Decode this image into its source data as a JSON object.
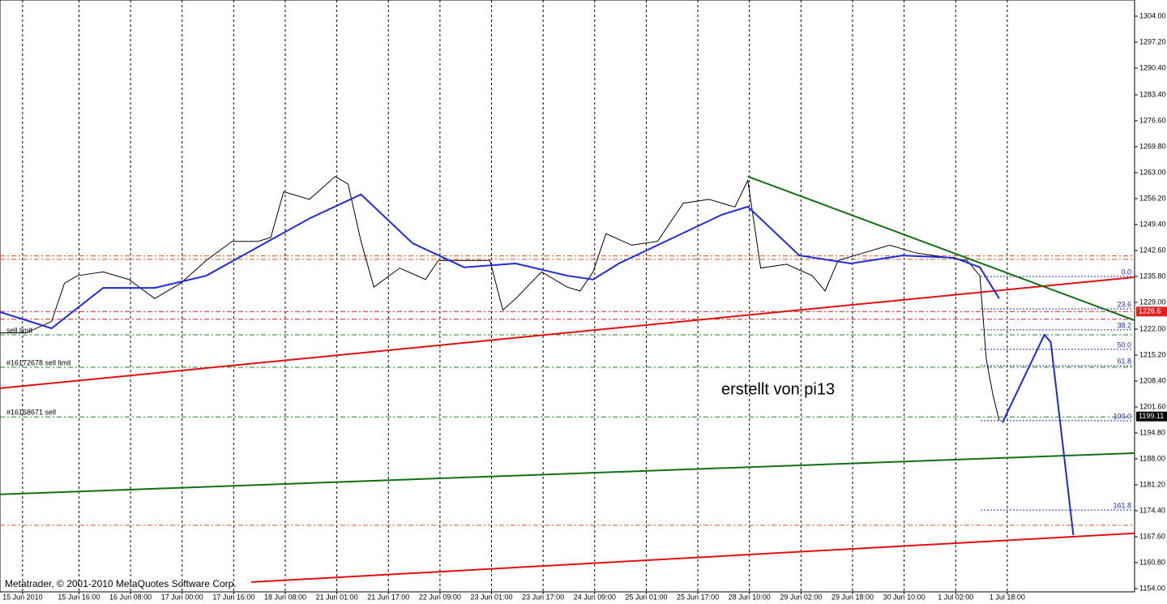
{
  "chart_data": {
    "type": "line",
    "footer": "Metatrader, © 2001-2010 MetaQuotes Software Corp.",
    "annotation": "erstellt von  pi13",
    "xlim": [
      0,
      352
    ],
    "xticks": [
      {
        "value": 7,
        "label": "15 Jun 2010"
      },
      {
        "value": 24.5,
        "label": "15 Jun 16:00"
      },
      {
        "value": 40.5,
        "label": "16 Jun 08:00"
      },
      {
        "value": 56.5,
        "label": "17 Jun 00:00"
      },
      {
        "value": 72.5,
        "label": "17 Jun 16:00"
      },
      {
        "value": 88.5,
        "label": "18 Jun 08:00"
      },
      {
        "value": 104.5,
        "label": "21 Jun 01:00"
      },
      {
        "value": 120.5,
        "label": "21 Jun 17:00"
      },
      {
        "value": 136.5,
        "label": "22 Jun 09:00"
      },
      {
        "value": 152.5,
        "label": "23 Jun 01:00"
      },
      {
        "value": 168.5,
        "label": "23 Jun 17:00"
      },
      {
        "value": 184.5,
        "label": "24 Jun 09:00"
      },
      {
        "value": 200.5,
        "label": "25 Jun 01:00"
      },
      {
        "value": 216.5,
        "label": "25 Jun 17:00"
      },
      {
        "value": 232.5,
        "label": "28 Jun 10:00"
      },
      {
        "value": 248.5,
        "label": "29 Jun 02:00"
      },
      {
        "value": 264.5,
        "label": "29 Jun 18:00"
      },
      {
        "value": 280.5,
        "label": "30 Jun 10:00"
      },
      {
        "value": 296.5,
        "label": "1 Jul 02:00"
      },
      {
        "value": 312.5,
        "label": "1 Jul 18:00"
      }
    ],
    "ylim": [
      1153.15,
      1308.25
    ],
    "yticks": [
      {
        "value": 1304,
        "label": "1304.00"
      },
      {
        "value": 1297.2,
        "label": "1297.20"
      },
      {
        "value": 1290.4,
        "label": "1290.40"
      },
      {
        "value": 1283.4,
        "label": "1283.40"
      },
      {
        "value": 1276.6,
        "label": "1276.60"
      },
      {
        "value": 1269.8,
        "label": "1269.80"
      },
      {
        "value": 1263,
        "label": "1263.00"
      },
      {
        "value": 1256.2,
        "label": "1256.20"
      },
      {
        "value": 1249.4,
        "label": "1249.40"
      },
      {
        "value": 1242.6,
        "label": "1242.60"
      },
      {
        "value": 1235.8,
        "label": "1235.80"
      },
      {
        "value": 1229,
        "label": "1229.00"
      },
      {
        "value": 1222,
        "label": "1222.00"
      },
      {
        "value": 1215.2,
        "label": "1215.20"
      },
      {
        "value": 1208.4,
        "label": "1208.40"
      },
      {
        "value": 1201.6,
        "label": "1201.60"
      },
      {
        "value": 1194.8,
        "label": "1194.80"
      },
      {
        "value": 1188,
        "label": "1188.00"
      },
      {
        "value": 1181.2,
        "label": "1181.20"
      },
      {
        "value": 1174.4,
        "label": "1174.40"
      },
      {
        "value": 1167.6,
        "label": "1167.60"
      },
      {
        "value": 1160.8,
        "label": "1160.80"
      },
      {
        "value": 1154,
        "label": "1154.00"
      }
    ],
    "grid": "x",
    "series": [
      {
        "color": "#000000",
        "x": [
          0,
          8,
          16,
          20,
          24,
          32,
          40,
          48,
          56,
          64,
          72,
          80,
          84,
          88,
          96,
          104,
          108,
          112,
          116,
          124,
          132,
          136,
          144,
          152,
          156,
          160,
          168,
          176,
          180,
          184,
          188,
          196,
          204,
          212,
          220,
          228,
          232,
          236,
          244,
          252,
          256,
          260,
          268,
          276,
          284,
          292,
          300,
          304,
          306,
          308,
          310
        ],
        "values": [
          1221,
          1221,
          1224,
          1234,
          1236,
          1237,
          1235,
          1230,
          1234,
          1240,
          1245,
          1245,
          1246,
          1258,
          1256,
          1262,
          1260,
          1245,
          1233,
          1238,
          1235,
          1240,
          1240,
          1240,
          1227,
          1230,
          1237,
          1233,
          1232,
          1237,
          1247,
          1244,
          1245,
          1255,
          1256,
          1254,
          1261,
          1238,
          1239,
          1236,
          1232,
          1240,
          1242,
          1244,
          1242,
          1241,
          1240,
          1236,
          1214,
          1205,
          1198
        ]
      },
      {
        "color": "#1f2bd6",
        "x": [
          0,
          16,
          32,
          48,
          64,
          80,
          96,
          112,
          128,
          144,
          160,
          176,
          184,
          192,
          208,
          224,
          232,
          248,
          264,
          280,
          296,
          304,
          310
        ],
        "values": [
          1226.5,
          1222.2,
          1232.8,
          1232.8,
          1236,
          1243.5,
          1251,
          1257.3,
          1244.5,
          1238.2,
          1239.2,
          1236,
          1235,
          1239.2,
          1245.6,
          1252,
          1254.1,
          1241.3,
          1239.2,
          1241.3,
          1240.7,
          1238.2,
          1230
        ]
      }
    ],
    "hlines": [
      {
        "value": 1241.2,
        "color": "#e0501a"
      },
      {
        "value": 1240.3,
        "color": "#e0501a"
      },
      {
        "value": 1226.6,
        "color": "#e02020"
      },
      {
        "value": 1224.6,
        "color": "#e02020"
      },
      {
        "value": 1220.5,
        "color": "#1a8a1a"
      },
      {
        "value": 1212,
        "color": "#1a8a1a"
      },
      {
        "value": 1199,
        "color": "#1a8a1a"
      },
      {
        "value": 1170.6,
        "color": "#e0501a"
      }
    ],
    "orders": [
      {
        "value": 1220.5,
        "label": "sell limit"
      },
      {
        "value": 1212,
        "label": "#16172678 sell limit"
      },
      {
        "value": 1199,
        "label": "#16168671 sell"
      }
    ],
    "trendlines": [
      {
        "color": "#e01010",
        "x": [
          0,
          352
        ],
        "values": [
          1206.5,
          1235.6
        ]
      },
      {
        "color": "#e01010",
        "x": [
          78,
          352
        ],
        "values": [
          1155.7,
          1168.5
        ]
      },
      {
        "color": "#127012",
        "x": [
          0,
          352
        ],
        "values": [
          1178.7,
          1189.5
        ]
      },
      {
        "color": "#127012",
        "x": [
          232,
          352
        ],
        "values": [
          1262,
          1224.3
        ]
      },
      {
        "color": "#1c2ad0",
        "x": [
          311,
          324,
          326,
          333
        ],
        "values": [
          1197.5,
          1220.5,
          1218.6,
          1168
        ]
      }
    ],
    "fib_levels": [
      {
        "price": 1235.8,
        "label": "0.0"
      },
      {
        "price": 1227.3,
        "label": "23.6"
      },
      {
        "price": 1221.8,
        "label": "38.2"
      },
      {
        "price": 1216.7,
        "label": "50.0"
      },
      {
        "price": 1212.4,
        "label": "61.8"
      },
      {
        "price": 1198,
        "label": "100.0"
      },
      {
        "price": 1174.6,
        "label": "161.8"
      }
    ],
    "price_markers": [
      {
        "value": 1226.6,
        "label": "1226.6",
        "color": "#e02020"
      },
      {
        "value": 1199.11,
        "label": "1199.11",
        "color": "#000000"
      }
    ]
  }
}
